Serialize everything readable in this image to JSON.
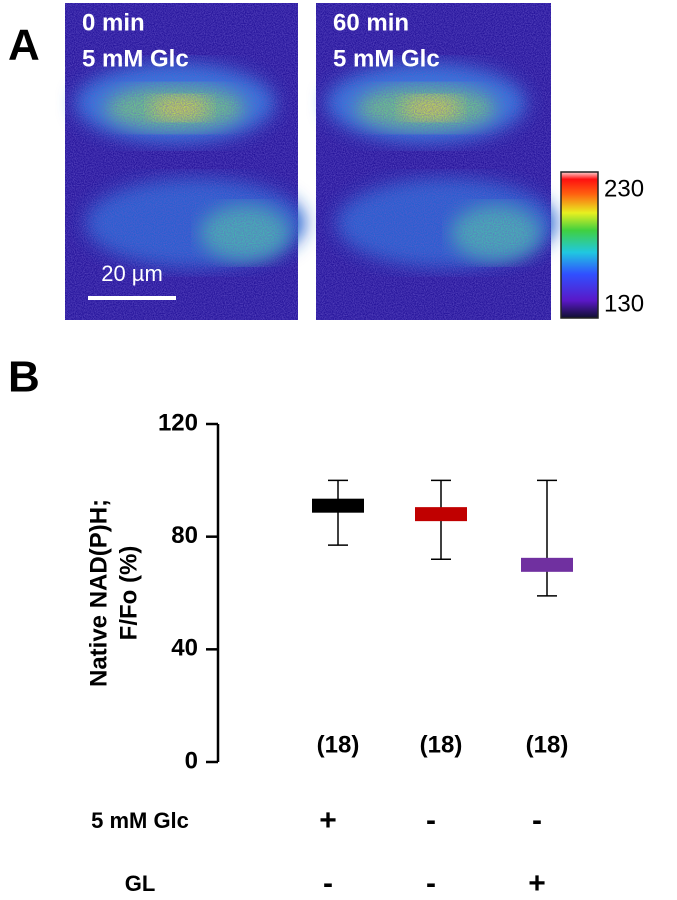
{
  "panel_a": {
    "label": "A",
    "images": [
      {
        "time": "0 min",
        "condition": "5 mM Glc"
      },
      {
        "time": "60 min",
        "condition": "5 mM Glc"
      }
    ],
    "scale_bar": "20 µm",
    "colorbar": {
      "max": 230,
      "min": 130
    }
  },
  "chart_data": {
    "type": "errorbar",
    "label": "B",
    "ylabel": [
      "Native NAD(P)H;",
      "F/Fo (%)"
    ],
    "ylim": [
      0,
      120
    ],
    "yticks": [
      0,
      40,
      80,
      120
    ],
    "series": [
      {
        "values": [
          91,
          88,
          70
        ],
        "lower": [
          77,
          72,
          59
        ],
        "upper": [
          100,
          100,
          100
        ],
        "colors": [
          "#000000",
          "#c00000",
          "#7030a0"
        ]
      }
    ],
    "n_labels": [
      "(18)",
      "(18)",
      "(18)"
    ],
    "conditions": [
      {
        "name": "5 mM Glc",
        "marks": [
          "+",
          "-",
          "-"
        ]
      },
      {
        "name": "GL",
        "marks": [
          "-",
          "-",
          "+"
        ]
      }
    ]
  }
}
